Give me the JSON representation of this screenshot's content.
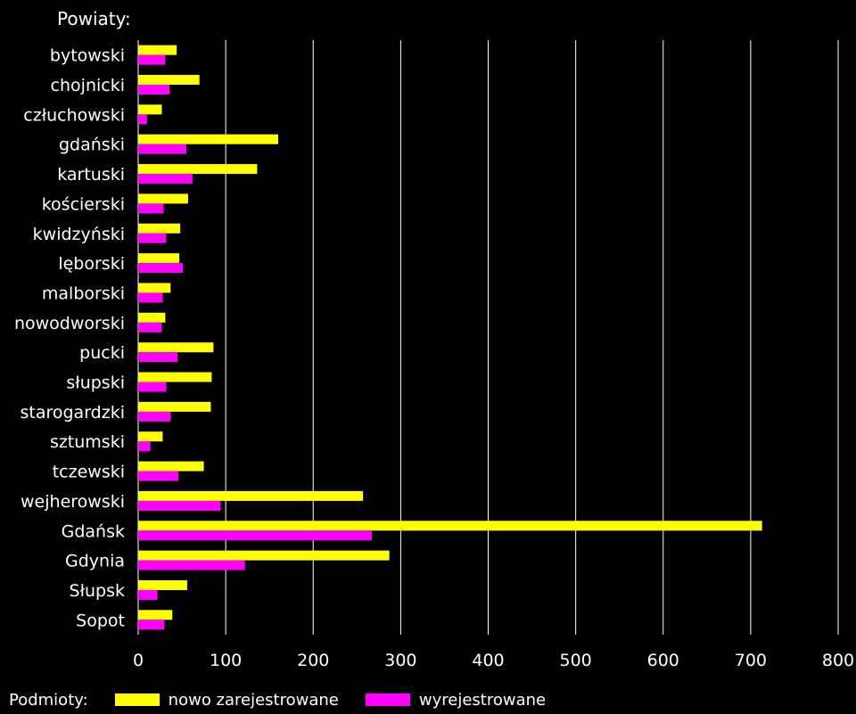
{
  "chart_data": {
    "type": "bar",
    "orientation": "horizontal",
    "y_title": "Powiaty:",
    "legend_title": "Podmioty:",
    "categories": [
      "bytowski",
      "chojnicki",
      "człuchowski",
      "gdański",
      "kartuski",
      "kościerski",
      "kwidzyński",
      "lęborski",
      "malborski",
      "nowodworski",
      "pucki",
      "słupski",
      "starogardzki",
      "sztumski",
      "tczewski",
      "wejherowski",
      "Gdańsk",
      "Gdynia",
      "Słupsk",
      "Sopot"
    ],
    "series": [
      {
        "name": "nowo zarejestrowane",
        "color": "#ffff00",
        "values": [
          44,
          70,
          27,
          160,
          136,
          57,
          48,
          47,
          37,
          31,
          86,
          84,
          83,
          28,
          75,
          257,
          713,
          287,
          56,
          39
        ]
      },
      {
        "name": "wyrejestrowane",
        "color": "#ff00ff",
        "values": [
          31,
          36,
          10,
          55,
          62,
          29,
          32,
          51,
          28,
          27,
          45,
          32,
          37,
          14,
          46,
          94,
          267,
          122,
          22,
          30
        ]
      }
    ],
    "xlim": [
      0,
      800
    ],
    "xticks": [
      0,
      100,
      200,
      300,
      400,
      500,
      600,
      700,
      800
    ],
    "grid": true,
    "legend_position": "bottom-left",
    "background": "#000000",
    "grid_color": "#ffffff"
  }
}
